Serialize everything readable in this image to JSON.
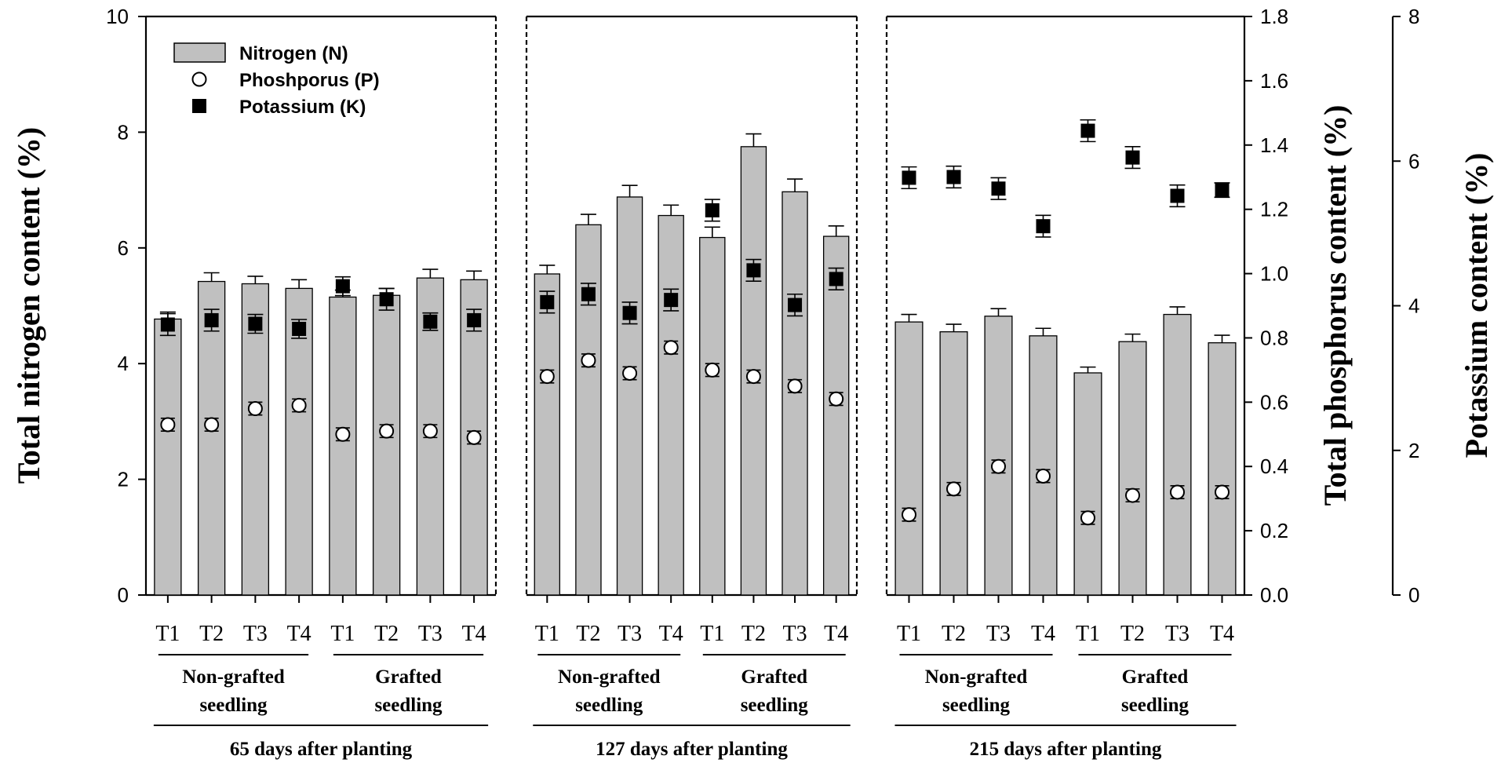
{
  "chart_data": {
    "type": "bar",
    "ylabel_left": "Total nitrogen content (%)",
    "ylabel_right_p": "Total phosphorus content (%)",
    "ylabel_right_k": "Potassium content (%)",
    "ylim_n": [
      0,
      10
    ],
    "ylim_p": [
      0,
      1.8
    ],
    "ylim_k": [
      0,
      8
    ],
    "yticks_n": [
      "0",
      "2",
      "4",
      "6",
      "8",
      "10"
    ],
    "yticks_p": [
      "0.0",
      "0.2",
      "0.4",
      "0.6",
      "0.8",
      "1.0",
      "1.2",
      "1.4",
      "1.6",
      "1.8"
    ],
    "yticks_k": [
      "0",
      "2",
      "4",
      "6",
      "8"
    ],
    "legend": [
      {
        "name": "Nitrogen (N)",
        "marker": "bar"
      },
      {
        "name": "Phosphorus (P)",
        "marker": "open-circle"
      },
      {
        "name": "Potassium (K)",
        "marker": "filled-square"
      }
    ],
    "legend_text": [
      "Nitrogen (N)",
      "Phoshporus (P)",
      "Potassium (K)"
    ],
    "panels": [
      {
        "title": "65 days after planting",
        "groups": [
          "Non-grafted seedling",
          "Grafted seedling"
        ],
        "categories": [
          "T1",
          "T2",
          "T3",
          "T4",
          "T1",
          "T2",
          "T3",
          "T4"
        ],
        "N": [
          4.77,
          5.42,
          5.38,
          5.3,
          5.15,
          5.18,
          5.48,
          5.45
        ],
        "N_err": [
          0.12,
          0.15,
          0.13,
          0.15,
          0.12,
          0.12,
          0.15,
          0.15
        ],
        "P": [
          0.53,
          0.53,
          0.58,
          0.59,
          0.5,
          0.51,
          0.51,
          0.49
        ],
        "P_err": [
          0.02,
          0.02,
          0.02,
          0.02,
          0.02,
          0.02,
          0.02,
          0.02
        ],
        "K": [
          3.74,
          3.8,
          3.75,
          3.68,
          4.27,
          4.09,
          3.78,
          3.8
        ],
        "K_err": [
          0.15,
          0.15,
          0.13,
          0.13,
          0.13,
          0.15,
          0.12,
          0.15
        ]
      },
      {
        "title": "127 days after planting",
        "groups": [
          "Non-grafted seedling",
          "Grafted seedling"
        ],
        "categories": [
          "T1",
          "T2",
          "T3",
          "T4",
          "T1",
          "T2",
          "T3",
          "T4"
        ],
        "N": [
          5.55,
          6.4,
          6.88,
          6.56,
          6.18,
          7.75,
          6.97,
          6.2
        ],
        "N_err": [
          0.15,
          0.18,
          0.2,
          0.18,
          0.18,
          0.22,
          0.22,
          0.18
        ],
        "P": [
          0.68,
          0.73,
          0.69,
          0.77,
          0.7,
          0.68,
          0.65,
          0.61
        ],
        "P_err": [
          0.02,
          0.02,
          0.02,
          0.02,
          0.02,
          0.02,
          0.02,
          0.02
        ],
        "K": [
          4.05,
          4.16,
          3.9,
          4.08,
          5.32,
          4.49,
          4.01,
          4.37
        ],
        "K_err": [
          0.15,
          0.15,
          0.15,
          0.15,
          0.15,
          0.15,
          0.15,
          0.15
        ]
      },
      {
        "title": "215 days after planting",
        "groups": [
          "Non-grafted seedling",
          "Grafted seedling"
        ],
        "categories": [
          "T1",
          "T2",
          "T3",
          "T4",
          "T1",
          "T2",
          "T3",
          "T4"
        ],
        "N": [
          4.72,
          4.55,
          4.82,
          4.48,
          3.84,
          4.38,
          4.85,
          4.36
        ],
        "N_err": [
          0.13,
          0.13,
          0.13,
          0.13,
          0.1,
          0.13,
          0.13,
          0.13
        ],
        "P": [
          0.25,
          0.33,
          0.4,
          0.37,
          0.24,
          0.31,
          0.32,
          0.32
        ],
        "P_err": [
          0.02,
          0.02,
          0.02,
          0.02,
          0.02,
          0.02,
          0.02,
          0.02
        ],
        "K": [
          5.77,
          5.78,
          5.62,
          5.1,
          6.42,
          6.05,
          5.52,
          5.6
        ],
        "K_err": [
          0.15,
          0.15,
          0.15,
          0.15,
          0.15,
          0.15,
          0.15,
          0.1
        ]
      }
    ],
    "colors": {
      "bar": "#c0c0c0",
      "outline": "#000000"
    }
  }
}
